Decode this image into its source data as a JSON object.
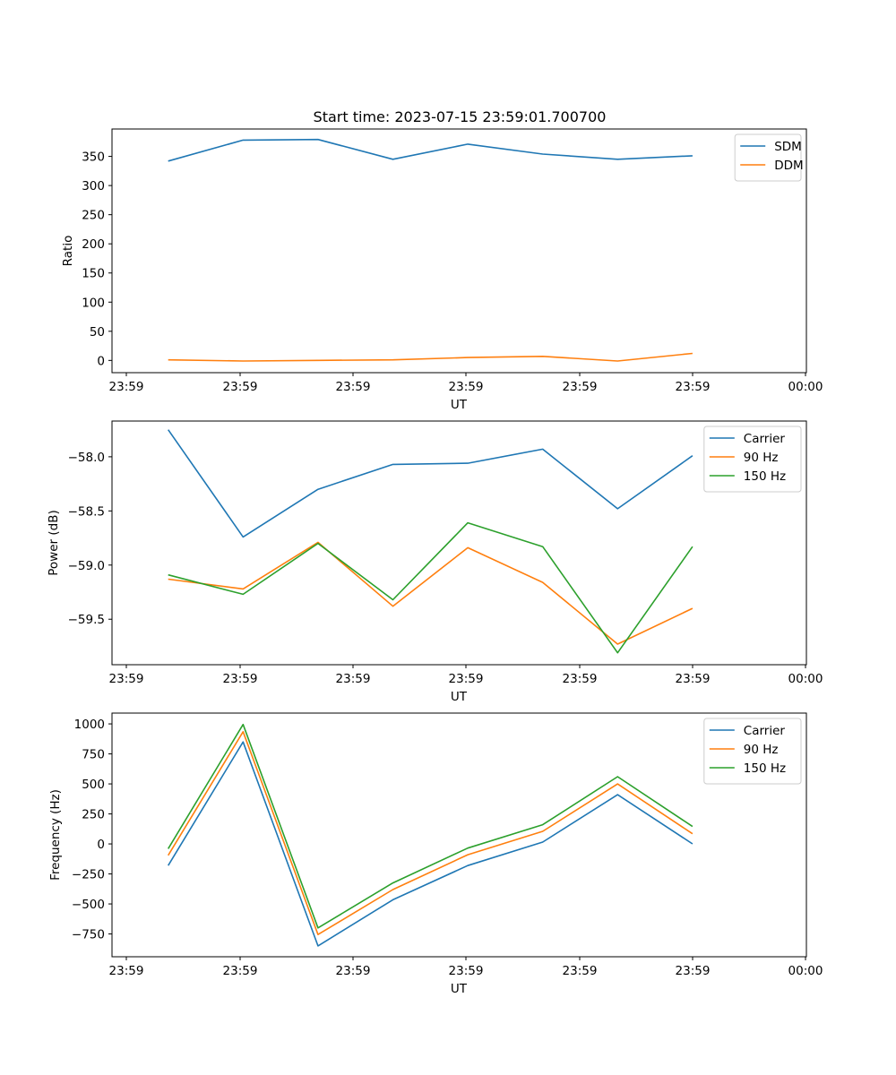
{
  "chart_data": [
    {
      "type": "line",
      "title": "Start time: 2023-07-15 23:59:01.700700",
      "xlabel": "UT",
      "ylabel": "Ratio",
      "x_tick_labels": [
        "23:59",
        "23:59",
        "23:59",
        "23:59",
        "23:59",
        "23:59",
        "00:00"
      ],
      "y_ticks": [
        0,
        50,
        100,
        150,
        200,
        250,
        300,
        350
      ],
      "ylim": [
        -21,
        397
      ],
      "x": [
        0,
        1,
        2,
        3,
        4,
        5,
        6,
        7
      ],
      "xlim": [
        -0.75,
        8.52
      ],
      "legend": "top-right",
      "series": [
        {
          "name": "SDM",
          "color": "#1f77b4",
          "values": [
            342,
            378,
            379,
            345,
            371,
            354,
            345,
            351
          ]
        },
        {
          "name": "DDM",
          "color": "#ff7f0e",
          "values": [
            1,
            -1,
            0,
            1,
            5,
            7,
            -1,
            12
          ]
        }
      ]
    },
    {
      "type": "line",
      "title": "",
      "xlabel": "UT",
      "ylabel": "Power (dB)",
      "x_tick_labels": [
        "23:59",
        "23:59",
        "23:59",
        "23:59",
        "23:59",
        "23:59",
        "00:00"
      ],
      "y_ticks": [
        -59.5,
        -59.0,
        -58.5,
        -58.0
      ],
      "y_tick_labels": [
        "−59.5",
        "−59.0",
        "−58.5",
        "−58.0"
      ],
      "ylim": [
        -59.92,
        -57.67
      ],
      "x": [
        0,
        1,
        2,
        3,
        4,
        5,
        6,
        7
      ],
      "xlim": [
        -0.75,
        8.52
      ],
      "legend": "top-right",
      "series": [
        {
          "name": "Carrier",
          "color": "#1f77b4",
          "values": [
            -57.75,
            -58.74,
            -58.3,
            -58.07,
            -58.06,
            -57.93,
            -58.48,
            -57.99
          ]
        },
        {
          "name": "90 Hz",
          "color": "#ff7f0e",
          "values": [
            -59.13,
            -59.22,
            -58.79,
            -59.38,
            -58.84,
            -59.16,
            -59.73,
            -59.4
          ]
        },
        {
          "name": "150 Hz",
          "color": "#2ca02c",
          "values": [
            -59.09,
            -59.27,
            -58.8,
            -59.32,
            -58.61,
            -58.83,
            -59.81,
            -58.83
          ]
        }
      ]
    },
    {
      "type": "line",
      "title": "",
      "xlabel": "UT",
      "ylabel": "Frequency (Hz)",
      "x_tick_labels": [
        "23:59",
        "23:59",
        "23:59",
        "23:59",
        "23:59",
        "23:59",
        "00:00"
      ],
      "y_ticks": [
        -750,
        -500,
        -250,
        0,
        250,
        500,
        750,
        1000
      ],
      "y_tick_labels": [
        "−750",
        "−500",
        "−250",
        "0",
        "250",
        "500",
        "750",
        "1000"
      ],
      "ylim": [
        -940,
        1090
      ],
      "x": [
        0,
        1,
        2,
        3,
        4,
        5,
        6,
        7
      ],
      "xlim": [
        -0.75,
        8.52
      ],
      "legend": "top-right",
      "series": [
        {
          "name": "Carrier",
          "color": "#1f77b4",
          "values": [
            -180,
            850,
            -850,
            -465,
            -180,
            15,
            410,
            0
          ]
        },
        {
          "name": "90 Hz",
          "color": "#ff7f0e",
          "values": [
            -95,
            935,
            -755,
            -380,
            -90,
            105,
            500,
            85
          ]
        },
        {
          "name": "150 Hz",
          "color": "#2ca02c",
          "values": [
            -40,
            995,
            -700,
            -325,
            -35,
            160,
            560,
            145
          ]
        }
      ]
    }
  ]
}
